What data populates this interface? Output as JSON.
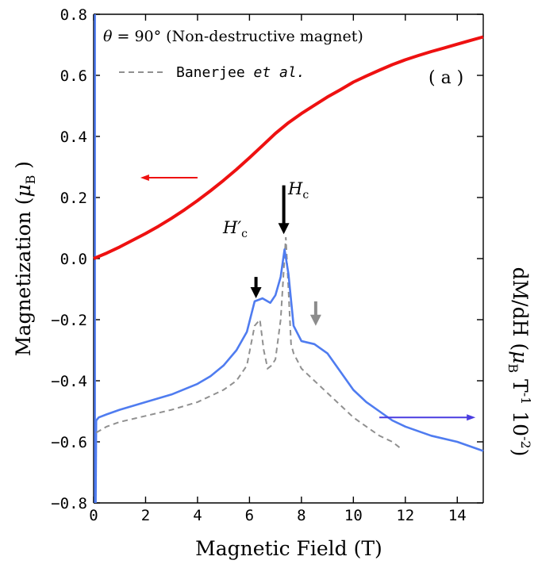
{
  "chart_data": {
    "type": "line",
    "panel_label": "( a )",
    "xlabel": "Magnetic Field (T)",
    "ylabel_left": {
      "main": "Magnetization (",
      "symbol": "μ",
      "sub": "B",
      "close": " )"
    },
    "ylabel_right": {
      "part1": "dM/dH (",
      "symbol": "μ",
      "sub": "B",
      "mid": " T",
      "sup1": "-1",
      "mid2": " 10",
      "sup2": "-2",
      "close": ")"
    },
    "legend": {
      "line1_symbol": "θ",
      "line1_rest": " = 90° (Non-destructive magnet)",
      "line2_prefix": "Banerjee ",
      "line2_italic": "et al."
    },
    "xlim": [
      0,
      15
    ],
    "ylim": [
      -0.8,
      0.8
    ],
    "x_ticks": [
      0,
      2,
      4,
      6,
      8,
      10,
      12,
      14
    ],
    "x_tick_labels": [
      "0",
      "2",
      "4",
      "6",
      "8",
      "10",
      "12",
      "14"
    ],
    "y_ticks": [
      -0.8,
      -0.6,
      -0.4,
      -0.2,
      0.0,
      0.2,
      0.4,
      0.6,
      0.8
    ],
    "y_tick_labels": [
      "−0.8",
      "−0.6",
      "−0.4",
      "−0.2",
      "0.0",
      "0.2",
      "0.4",
      "0.6",
      "0.8"
    ],
    "colors": {
      "magnetization": "#ee1111",
      "dmdh": "#4f7cf0",
      "banerjee": "#909090",
      "arrow_black": "#000000",
      "arrow_gray": "#8c8c8c",
      "arrow_left": "#ee1111",
      "arrow_right": "#4a3de0"
    },
    "series": [
      {
        "key": "magnetization",
        "x": [
          0,
          0.5,
          1,
          1.5,
          2,
          2.5,
          3,
          3.5,
          4,
          4.5,
          5,
          5.5,
          6,
          6.5,
          7,
          7.5,
          8,
          8.5,
          9,
          9.5,
          10,
          10.5,
          11,
          11.5,
          12,
          12.5,
          13,
          13.5,
          14,
          14.5,
          15
        ],
        "y": [
          0.0,
          0.018,
          0.038,
          0.06,
          0.082,
          0.106,
          0.132,
          0.16,
          0.19,
          0.222,
          0.256,
          0.292,
          0.33,
          0.37,
          0.41,
          0.445,
          0.475,
          0.502,
          0.529,
          0.553,
          0.578,
          0.598,
          0.617,
          0.635,
          0.651,
          0.665,
          0.678,
          0.69,
          0.702,
          0.714,
          0.726
        ]
      },
      {
        "key": "dmdh",
        "x": [
          0.1,
          0.2,
          0.5,
          1,
          2,
          3,
          4,
          4.5,
          5,
          5.5,
          5.9,
          6.2,
          6.5,
          6.8,
          7.0,
          7.2,
          7.35,
          7.5,
          7.7,
          8.0,
          8.5,
          9.0,
          9.5,
          10.0,
          10.5,
          11.0,
          11.5,
          12.0,
          13.0,
          14.0,
          15.0
        ],
        "y": [
          -0.53,
          -0.52,
          -0.51,
          -0.495,
          -0.47,
          -0.445,
          -0.41,
          -0.385,
          -0.35,
          -0.3,
          -0.24,
          -0.14,
          -0.13,
          -0.145,
          -0.12,
          -0.06,
          0.03,
          -0.05,
          -0.22,
          -0.27,
          -0.28,
          -0.31,
          -0.37,
          -0.43,
          -0.47,
          -0.5,
          -0.53,
          -0.55,
          -0.58,
          -0.6,
          -0.63
        ]
      },
      {
        "key": "banerjee",
        "x": [
          0.1,
          0.3,
          0.5,
          1,
          2,
          3,
          4,
          5,
          5.5,
          5.9,
          6.2,
          6.4,
          6.55,
          6.7,
          6.85,
          7.0,
          7.2,
          7.4,
          7.5,
          7.6,
          7.7,
          8.0,
          8.5,
          9,
          9.5,
          10,
          10.5,
          11,
          11.5,
          11.8
        ],
        "y": [
          -0.57,
          -0.56,
          -0.55,
          -0.535,
          -0.515,
          -0.495,
          -0.47,
          -0.43,
          -0.4,
          -0.35,
          -0.22,
          -0.2,
          -0.3,
          -0.36,
          -0.35,
          -0.33,
          -0.2,
          0.07,
          -0.1,
          -0.28,
          -0.31,
          -0.36,
          -0.4,
          -0.44,
          -0.48,
          -0.52,
          -0.55,
          -0.58,
          -0.6,
          -0.62
        ]
      }
    ],
    "annotations": {
      "hc_label": {
        "text": "H",
        "sub": "c"
      },
      "hc_prime_label": {
        "text": "H′",
        "sub": "c"
      },
      "arrow_hc_prime": {
        "x": 6.25,
        "y_tail": -0.06,
        "y_head": -0.13
      },
      "arrow_hc": {
        "x": 7.32,
        "y_tail": 0.24,
        "y_head": 0.08
      },
      "arrow_gray": {
        "x": 8.55,
        "y_tail": -0.14,
        "y_head": -0.22
      },
      "arrow_left": {
        "x_tail": 4.0,
        "x_head": 1.8,
        "y": 0.265
      },
      "arrow_right": {
        "x_tail": 11.0,
        "x_head": 14.7,
        "y": -0.52
      }
    }
  }
}
